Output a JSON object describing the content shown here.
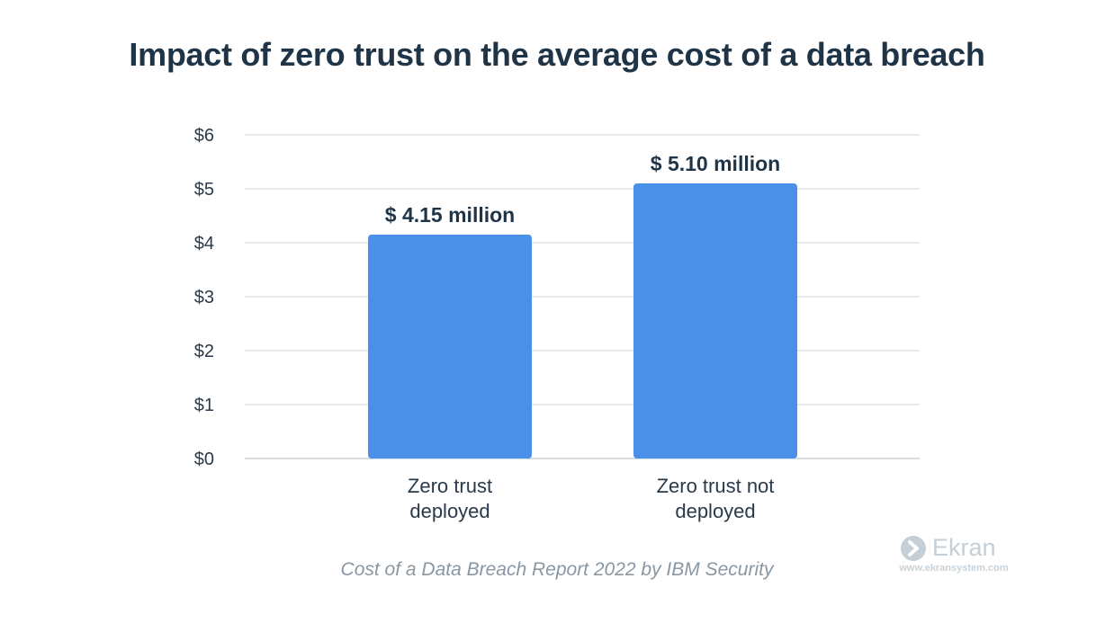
{
  "chart_data": {
    "type": "bar",
    "title": "Impact of zero trust on the average cost of a data breach",
    "categories": [
      "Zero trust\ndeployed",
      "Zero trust not\ndeployed"
    ],
    "values": [
      4.15,
      5.1
    ],
    "value_labels": [
      "$ 4.15 million",
      "$ 5.10 million"
    ],
    "y_ticks": [
      "$0",
      "$1",
      "$2",
      "$3",
      "$4",
      "$5",
      "$6"
    ],
    "ylim": [
      0,
      6
    ],
    "grid": true,
    "bar_color": "#4a8fe8",
    "source": "Cost of a Data Breach Report 2022 by IBM Security"
  },
  "brand": {
    "name": "Ekran",
    "url": "www.ekransystem.com",
    "logo_icon": "chevron-right-circle-icon"
  }
}
